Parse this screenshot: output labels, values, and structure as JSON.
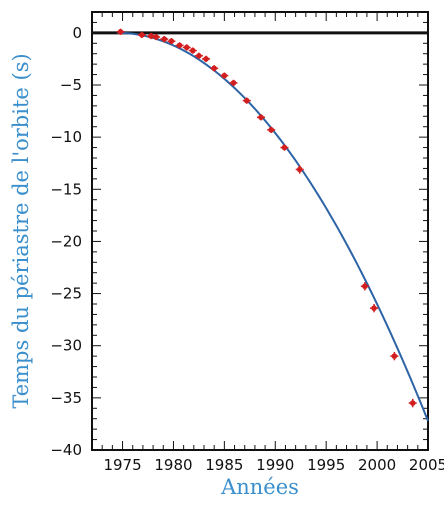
{
  "chart_data": {
    "type": "scatter",
    "xlabel": "Années",
    "ylabel": "Temps du périastre de l'orbite (s)",
    "xlim": [
      1972,
      2005
    ],
    "ylim": [
      -40,
      2
    ],
    "xticks": [
      1975,
      1980,
      1985,
      1990,
      1995,
      2000,
      2005
    ],
    "yticks": [
      0,
      -5,
      -10,
      -15,
      -20,
      -25,
      -30,
      -35,
      -40
    ],
    "grid": false,
    "zero_line": 0,
    "series": [
      {
        "kind": "points",
        "x": [
          1974.8,
          1976.9,
          1977.8,
          1978.3,
          1979.1,
          1979.8,
          1980.6,
          1981.3,
          1981.9,
          1982.5,
          1983.2,
          1984.0,
          1985.0,
          1985.9,
          1987.2,
          1988.6,
          1989.6,
          1990.9,
          1992.4,
          1998.8,
          1999.7,
          2001.7,
          2003.5
        ],
        "y": [
          0.1,
          -0.2,
          -0.3,
          -0.4,
          -0.6,
          -0.8,
          -1.2,
          -1.4,
          -1.7,
          -2.2,
          -2.5,
          -3.4,
          -4.1,
          -4.8,
          -6.5,
          -8.1,
          -9.3,
          -11.0,
          -13.1,
          -24.3,
          -26.4,
          -31.0,
          -35.5
        ],
        "error": [
          0.3,
          0.3,
          0.3,
          0.3,
          0.3,
          0.3,
          0.3,
          0.3,
          0.3,
          0.3,
          0.3,
          0.3,
          0.3,
          0.3,
          0.3,
          0.3,
          0.3,
          0.3,
          0.4,
          0.4,
          0.4,
          0.4,
          0.4
        ]
      },
      {
        "kind": "curve",
        "model": "quadratic",
        "x0": 1974.5,
        "a": -0.04
      }
    ]
  },
  "colors": {
    "curve": "#2d64a6",
    "points": "#d21e1e",
    "label": "#3a8fcc",
    "axis": "#111111"
  }
}
